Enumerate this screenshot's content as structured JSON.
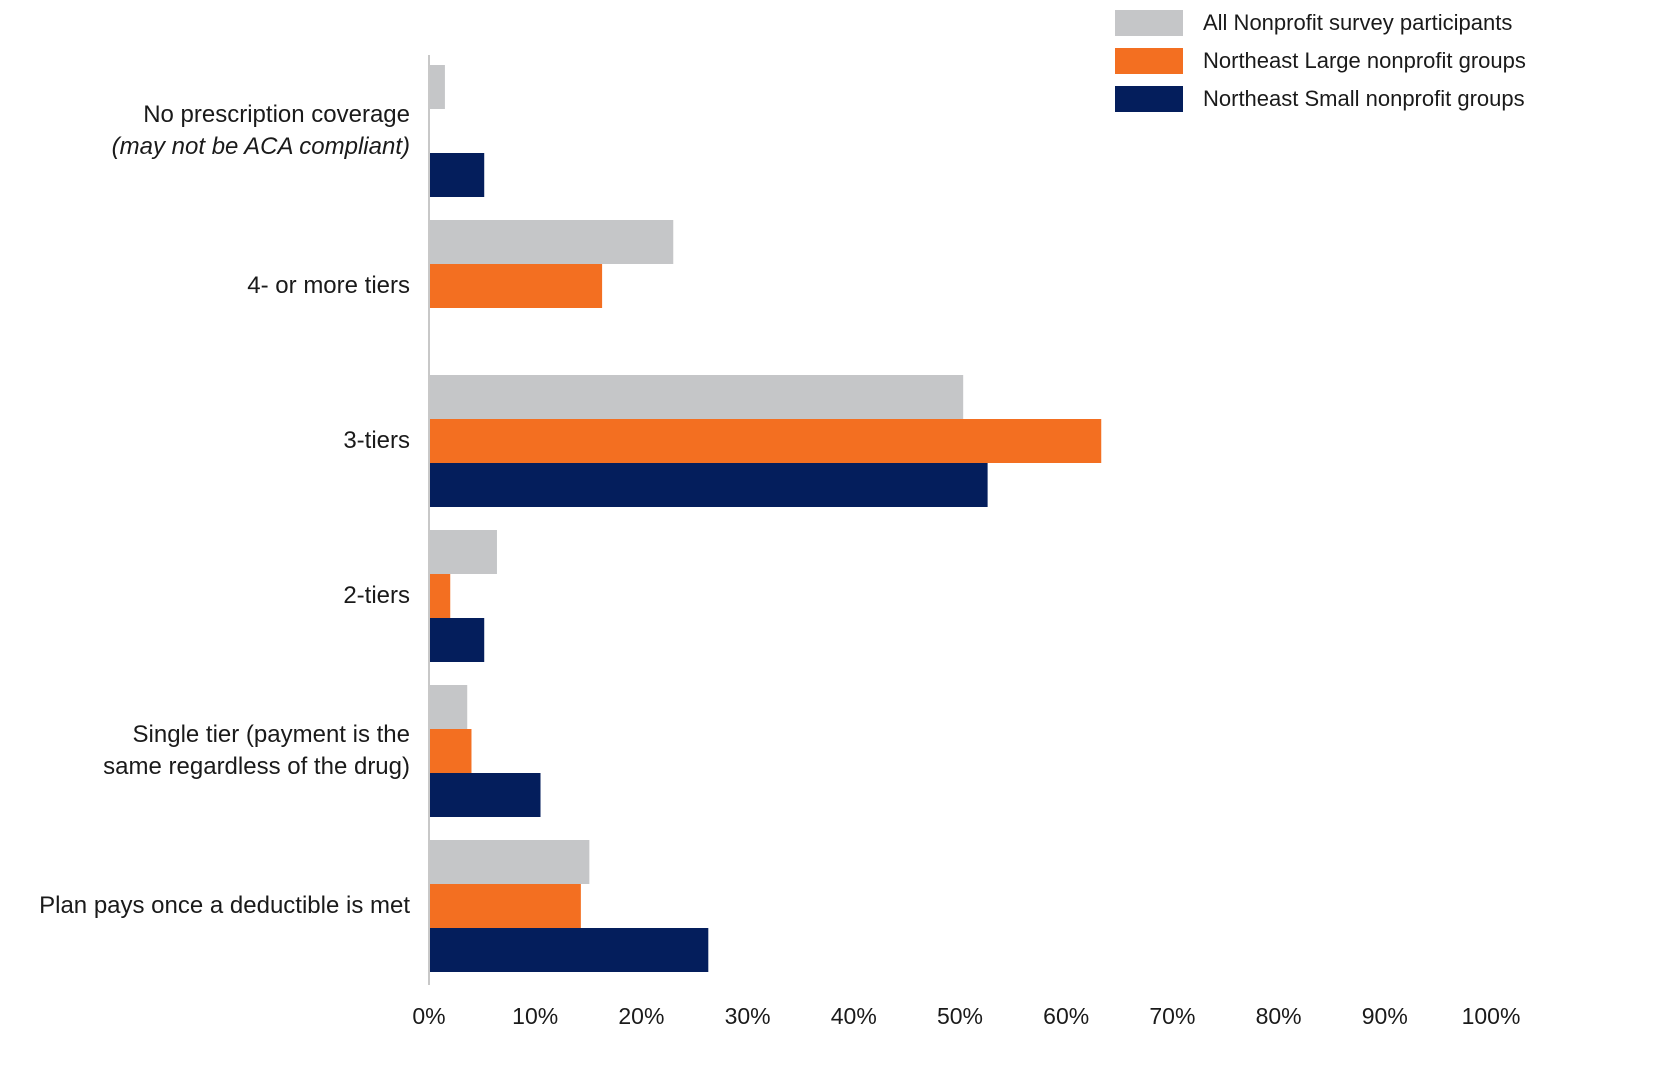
{
  "chart_data": {
    "type": "bar",
    "orientation": "horizontal",
    "categories": [
      {
        "label": "No prescription coverage",
        "sublabel": "(may not be ACA compliant)"
      },
      {
        "label": "4- or more tiers",
        "sublabel": ""
      },
      {
        "label": "3-tiers",
        "sublabel": ""
      },
      {
        "label": "2-tiers",
        "sublabel": ""
      },
      {
        "label": "Single tier (payment is the same regardless of the drug)",
        "sublabel": ""
      },
      {
        "label": "Plan pays once a deductible is met",
        "sublabel": ""
      }
    ],
    "series": [
      {
        "name": "All Nonprofit survey participants",
        "color": "#c5c6c8",
        "values": [
          1.5,
          23,
          50.3,
          6.4,
          3.6,
          15.1
        ]
      },
      {
        "name": "Northeast Large nonprofit groups",
        "color": "#f36f21",
        "values": [
          0,
          16.3,
          63.3,
          2,
          4,
          14.3
        ]
      },
      {
        "name": "Northeast Small nonprofit groups",
        "color": "#041e5c",
        "values": [
          5.2,
          0,
          52.6,
          5.2,
          10.5,
          26.3
        ]
      }
    ],
    "xlim": [
      0,
      100
    ],
    "xticks": [
      "0%",
      "10%",
      "20%",
      "30%",
      "40%",
      "50%",
      "60%",
      "70%",
      "80%",
      "90%",
      "100%"
    ],
    "legend_position": "top-right",
    "grid": false
  }
}
